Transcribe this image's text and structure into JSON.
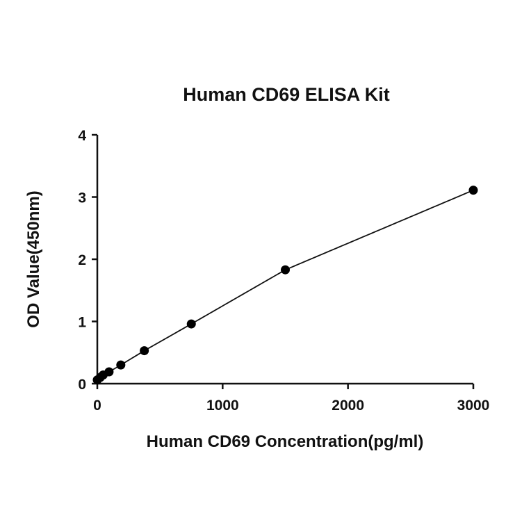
{
  "chart_data": {
    "type": "scatter",
    "title": "Human CD69 ELISA Kit",
    "xlabel": "Human CD69 Concentration(pg/ml)",
    "ylabel": "OD Value(450nm)",
    "xlim": [
      0,
      3000
    ],
    "ylim": [
      0,
      4
    ],
    "xticks": [
      "0",
      "1000",
      "2000",
      "3000"
    ],
    "yticks": [
      "0",
      "1",
      "2",
      "3",
      "4"
    ],
    "grid": false,
    "legend": "none",
    "series": [
      {
        "x": [
          0,
          23.4,
          46.9,
          93.8,
          187.5,
          375,
          750,
          1500,
          3000
        ],
        "y": [
          0.06,
          0.1,
          0.14,
          0.19,
          0.3,
          0.53,
          0.96,
          1.83,
          3.11
        ],
        "color": "#000000",
        "fit_curve": true
      }
    ]
  }
}
